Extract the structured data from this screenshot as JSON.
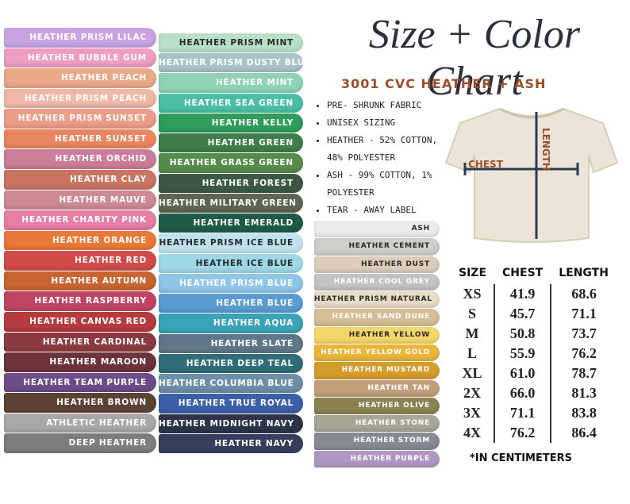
{
  "header": {
    "title": "Size + Color Chart",
    "subtitle": "3001 CVC HEATHER + ASH"
  },
  "features": [
    "PRE- SHRUNK FABRIC",
    "UNISEX SIZING",
    "HEATHER - 52% COTTON, 48% POLYESTER",
    "ASH - 99% COTTON, 1% POLYESTER",
    "TEAR - AWAY LABEL"
  ],
  "diagram": {
    "chest": "CHEST",
    "length": "LENGTH"
  },
  "colors": [
    [
      {
        "name": "HEATHER PRISM LILAC",
        "color": "#c9a3e3"
      },
      {
        "name": "HEATHER BUBBLE GUM",
        "color": "#ef9dc3"
      },
      {
        "name": "HEATHER PEACH",
        "color": "#eaa987"
      },
      {
        "name": "HEATHER PRISM PEACH",
        "color": "#f1b7a7"
      },
      {
        "name": "HEATHER PRISM SUNSET",
        "color": "#ec9d88"
      },
      {
        "name": "HEATHER SUNSET",
        "color": "#e9855f"
      },
      {
        "name": "HEATHER ORCHID",
        "color": "#cd7d9a"
      },
      {
        "name": "HEATHER CLAY",
        "color": "#c97561"
      },
      {
        "name": "HEATHER MAUVE",
        "color": "#cd8a94"
      },
      {
        "name": "HEATHER CHARITY PINK",
        "color": "#e77ea6"
      },
      {
        "name": "HEATHER ORANGE",
        "color": "#ea7838"
      },
      {
        "name": "HEATHER RED",
        "color": "#d24b4b"
      },
      {
        "name": "HEATHER AUTUMN",
        "color": "#c86530"
      },
      {
        "name": "HEATHER RASPBERRY",
        "color": "#c04564"
      },
      {
        "name": "HEATHER CANVAS RED",
        "color": "#b43c3f"
      },
      {
        "name": "HEATHER CARDINAL",
        "color": "#8c3a42"
      },
      {
        "name": "HEATHER MAROON",
        "color": "#6e3239"
      },
      {
        "name": "HEATHER TEAM PURPLE",
        "color": "#6d4c8a"
      },
      {
        "name": "HEATHER BROWN",
        "color": "#5c4234"
      },
      {
        "name": "ATHLETIC HEATHER",
        "color": "#a9a7a8"
      },
      {
        "name": "DEEP HEATHER",
        "color": "#7e7c7d"
      }
    ],
    [
      {
        "name": "HEATHER PRISM MINT",
        "color": "#b9dfc8"
      },
      {
        "name": "HEATHER PRISM DUSTY BLUE",
        "color": "#a9c4c9"
      },
      {
        "name": "HEATHER MINT",
        "color": "#8fd3b4"
      },
      {
        "name": "HEATHER SEA GREEN",
        "color": "#4bbfa6"
      },
      {
        "name": "HEATHER KELLY",
        "color": "#2e9c5b"
      },
      {
        "name": "HEATHER GREEN",
        "color": "#3f7d4a"
      },
      {
        "name": "HEATHER GRASS GREEN",
        "color": "#568c4a"
      },
      {
        "name": "HEATHER FOREST",
        "color": "#3c5845"
      },
      {
        "name": "HEATHER MILITARY GREEN",
        "color": "#5c6650"
      },
      {
        "name": "HEATHER EMERALD",
        "color": "#1e5a47"
      },
      {
        "name": "HEATHER PRISM ICE BLUE",
        "color": "#bfe3ee"
      },
      {
        "name": "HEATHER ICE BLUE",
        "color": "#9fd8e6"
      },
      {
        "name": "HEATHER PRISM BLUE",
        "color": "#8fc5e6"
      },
      {
        "name": "HEATHER BLUE",
        "color": "#5a9bd2"
      },
      {
        "name": "HEATHER AQUA",
        "color": "#3aa3b7"
      },
      {
        "name": "HEATHER SLATE",
        "color": "#5f7788"
      },
      {
        "name": "HEATHER DEEP TEAL",
        "color": "#2f6d7a"
      },
      {
        "name": "HEATHER COLUMBIA BLUE",
        "color": "#6e8fa9"
      },
      {
        "name": "HEATHER TRUE ROYAL",
        "color": "#3b5fa8"
      },
      {
        "name": "HEATHER MIDNIGHT NAVY",
        "color": "#2d3448"
      },
      {
        "name": "HEATHER NAVY",
        "color": "#353f5c"
      }
    ],
    [
      {
        "name": "ASH",
        "color": "#ececea"
      },
      {
        "name": "HEATHER CEMENT",
        "color": "#cfcecb"
      },
      {
        "name": "HEATHER DUST",
        "color": "#dcccbc"
      },
      {
        "name": "HEATHER COOL GREY",
        "color": "#c4c3c3"
      },
      {
        "name": "HEATHER PRISM NATURAL",
        "color": "#e8dcc6"
      },
      {
        "name": "HEATHER SAND DUNE",
        "color": "#d6bd96"
      },
      {
        "name": "HEATHER YELLOW",
        "color": "#f4d76a"
      },
      {
        "name": "HEATHER YELLOW GOLD",
        "color": "#eab63a"
      },
      {
        "name": "HEATHER MUSTARD",
        "color": "#d59c2d"
      },
      {
        "name": "HEATHER TAN",
        "color": "#c3a07c"
      },
      {
        "name": "HEATHER OLIVE",
        "color": "#8b8152"
      },
      {
        "name": "HEATHER STONE",
        "color": "#a7a594"
      },
      {
        "name": "HEATHER STORM",
        "color": "#878a93"
      },
      {
        "name": "HEATHER PURPLE",
        "color": "#b096c2"
      }
    ]
  ],
  "table": {
    "header": [
      "SIZE",
      "CHEST",
      "LENGTH"
    ],
    "rows": [
      [
        "XS",
        "41.9",
        "68.6"
      ],
      [
        "S",
        "45.7",
        "71.1"
      ],
      [
        "M",
        "50.8",
        "73.7"
      ],
      [
        "L",
        "55.9",
        "76.2"
      ],
      [
        "XL",
        "61.0",
        "78.7"
      ],
      [
        "2X",
        "66.0",
        "81.3"
      ],
      [
        "3X",
        "71.1",
        "83.8"
      ],
      [
        "4X",
        "76.2",
        "86.4"
      ]
    ],
    "note": "*IN CENTIMETERS"
  }
}
